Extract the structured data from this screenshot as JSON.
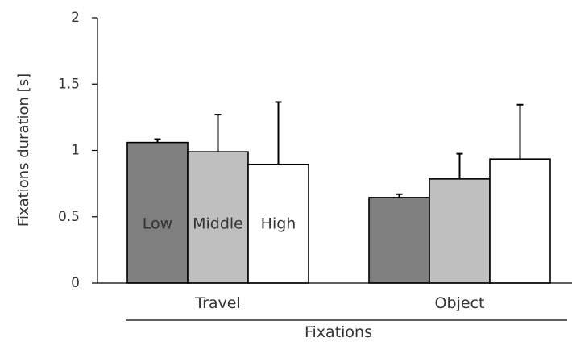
{
  "chart_data": {
    "type": "bar",
    "title": "",
    "xlabel": "Fixations",
    "ylabel": "Fixations duration [s]",
    "ylim": [
      0,
      2
    ],
    "yticks": [
      "0",
      "0.5",
      "1",
      "1.5",
      "2"
    ],
    "ytick_values": [
      0,
      0.5,
      1,
      1.5,
      2
    ],
    "categories": [
      "Travel",
      "Object"
    ],
    "legend_placement": "inside-bars",
    "grid": false,
    "error_bars": "upper-only",
    "series": [
      {
        "name": "Low",
        "color": "#808080",
        "values": [
          1.06,
          0.645
        ],
        "errors": [
          0.025,
          0.025
        ]
      },
      {
        "name": "Middle",
        "color": "#bfbfbf",
        "values": [
          0.99,
          0.785
        ],
        "errors": [
          0.28,
          0.19
        ]
      },
      {
        "name": "High",
        "color": "#ffffff",
        "values": [
          0.895,
          0.935
        ],
        "errors": [
          0.47,
          0.41
        ]
      }
    ]
  }
}
